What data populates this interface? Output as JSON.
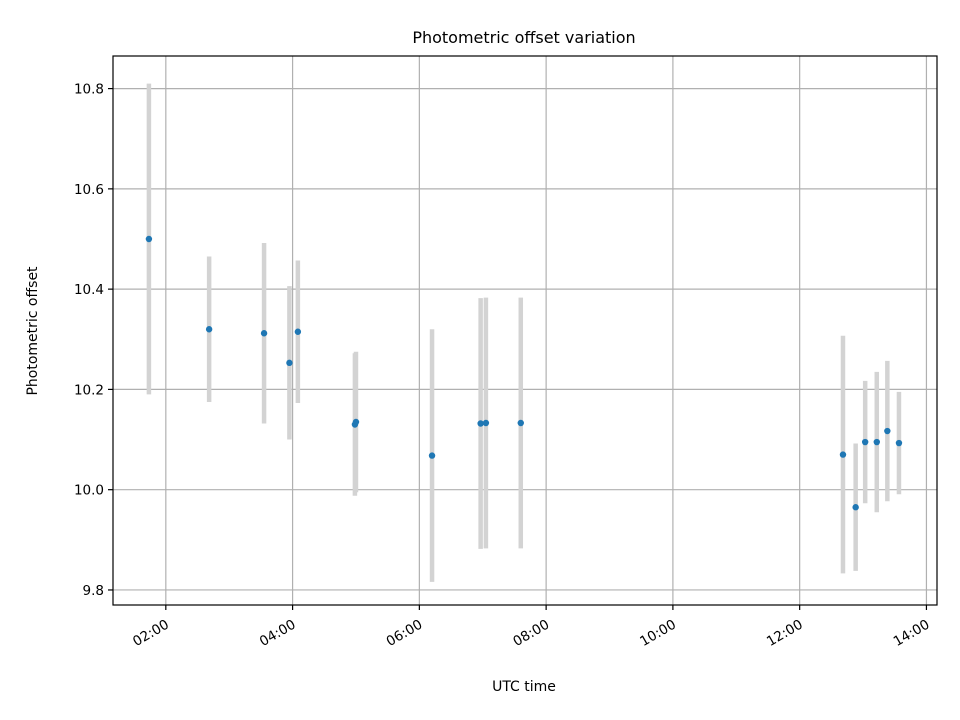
{
  "chart_data": {
    "type": "scatter",
    "title": "Photometric offset variation",
    "xlabel": "UTC time",
    "ylabel": "Photometric offset",
    "x_axis_type": "time",
    "xlim": [
      "01:10",
      "14:10"
    ],
    "ylim": [
      9.77,
      10.865
    ],
    "xticks": [
      "02:00",
      "04:00",
      "06:00",
      "08:00",
      "10:00",
      "12:00",
      "14:00"
    ],
    "yticks": [
      9.8,
      10.0,
      10.2,
      10.4,
      10.6,
      10.8
    ],
    "ytick_labels": [
      "9.8",
      "10.0",
      "10.2",
      "10.4",
      "10.6",
      "10.8"
    ],
    "grid": true,
    "series": [
      {
        "points": [
          {
            "x": "01:44",
            "y": 10.5,
            "err": 0.31
          },
          {
            "x": "02:41",
            "y": 10.32,
            "err": 0.145
          },
          {
            "x": "03:33",
            "y": 10.312,
            "err": 0.18
          },
          {
            "x": "03:57",
            "y": 10.253,
            "err": 0.153
          },
          {
            "x": "04:05",
            "y": 10.315,
            "err": 0.142
          },
          {
            "x": "04:59",
            "y": 10.13,
            "err": 0.142
          },
          {
            "x": "05:00",
            "y": 10.135,
            "err": 0.14
          },
          {
            "x": "06:12",
            "y": 10.068,
            "err": 0.252
          },
          {
            "x": "06:58",
            "y": 10.132,
            "err": 0.25
          },
          {
            "x": "07:03",
            "y": 10.133,
            "err": 0.25
          },
          {
            "x": "07:36",
            "y": 10.133,
            "err": 0.25
          },
          {
            "x": "12:41",
            "y": 10.07,
            "err": 0.237
          },
          {
            "x": "12:53",
            "y": 9.965,
            "err": 0.127
          },
          {
            "x": "13:02",
            "y": 10.095,
            "err": 0.122
          },
          {
            "x": "13:13",
            "y": 10.095,
            "err": 0.14
          },
          {
            "x": "13:23",
            "y": 10.117,
            "err": 0.14
          },
          {
            "x": "13:34",
            "y": 10.093,
            "err": 0.102
          }
        ]
      }
    ],
    "colors": {
      "marker": "#1f77b4",
      "errorbar": "#d3d3d3",
      "grid": "#b0b0b0",
      "axes": "#000000"
    }
  }
}
